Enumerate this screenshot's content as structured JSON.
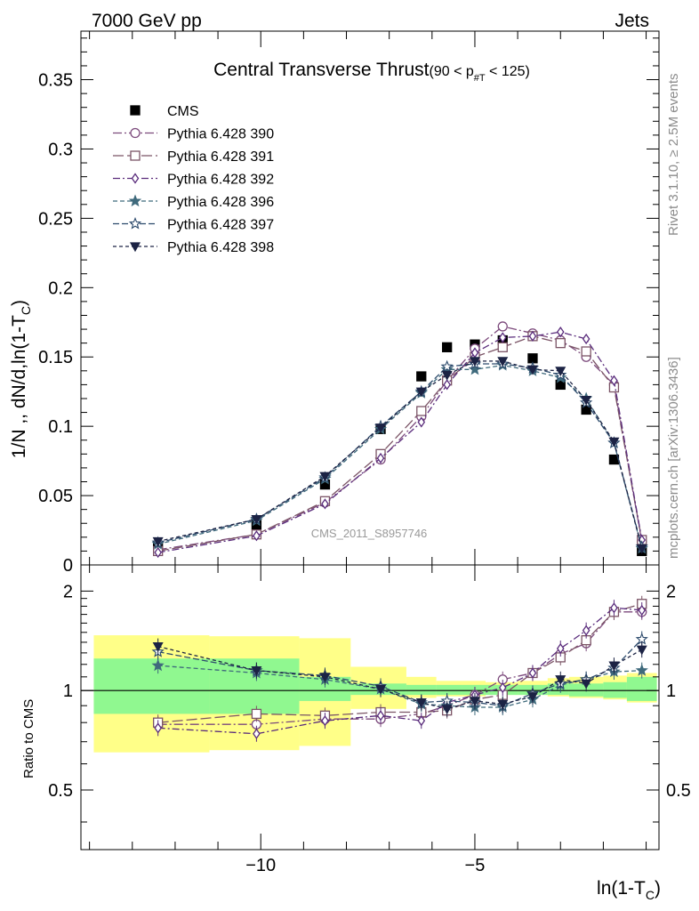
{
  "header": {
    "left": "7000 GeV pp",
    "right": "Jets"
  },
  "side_text": {
    "rivet": "Rivet 3.1.10, ≥ 2.5M events",
    "mcplots": "mcplots.cern.ch [arXiv:1306.3436]"
  },
  "watermark": "CMS_2011_S8957746",
  "chart_data": {
    "type": "line",
    "title": "Central Transverse Thrust",
    "title_suffix": "(90 < p",
    "title_suffix_sub": "#T",
    "title_suffix_end": " < 125)",
    "xlabel": "ln(1-T",
    "xlabel_sub": "C",
    "xlabel_end": ")",
    "ylabel": "1/N ,, dN/d,ln(1-T",
    "ylabel_sub": "C",
    "ylabel_end": ")",
    "ratio_ylabel": "Ratio to CMS",
    "xlim": [
      -14.2,
      -0.7
    ],
    "ylim": [
      0,
      0.385
    ],
    "ratio_ylim": [
      0.33,
      2.4
    ],
    "ratio_log": true,
    "x_ticks": [
      -10,
      -5
    ],
    "x_tick_labels": [
      "−10",
      "−5"
    ],
    "y_ticks": [
      0,
      0.05,
      0.1,
      0.15,
      0.2,
      0.25,
      0.3,
      0.35
    ],
    "y_tick_labels": [
      "0",
      "0.05",
      "0.1",
      "0.15",
      "0.2",
      "0.25",
      "0.3",
      "0.35"
    ],
    "ratio_ticks": [
      0.5,
      1,
      2
    ],
    "ratio_tick_labels": [
      "0.5",
      "1",
      "2"
    ],
    "x": [
      -12.4,
      -10.1,
      -8.5,
      -7.2,
      -6.25,
      -5.65,
      -5.0,
      -4.35,
      -3.65,
      -3.0,
      -2.4,
      -1.75,
      -1.1
    ],
    "band_edges": [
      -13.9,
      -11.2,
      -9.1,
      -7.9,
      -6.6,
      -5.9,
      -5.3,
      -4.75,
      -4.0,
      -3.3,
      -2.8,
      -2.0,
      -1.45,
      -0.75
    ],
    "band_stat": [
      [
        0.85,
        1.25
      ],
      [
        0.85,
        1.25
      ],
      [
        0.93,
        1.1
      ],
      [
        0.97,
        1.05
      ],
      [
        0.97,
        1.04
      ],
      [
        0.97,
        1.04
      ],
      [
        0.97,
        1.04
      ],
      [
        0.97,
        1.04
      ],
      [
        0.97,
        1.04
      ],
      [
        0.97,
        1.05
      ],
      [
        0.96,
        1.05
      ],
      [
        0.95,
        1.06
      ],
      [
        0.93,
        1.1
      ]
    ],
    "band_total": [
      [
        0.65,
        1.47
      ],
      [
        0.66,
        1.46
      ],
      [
        0.68,
        1.44
      ],
      [
        0.88,
        1.18
      ],
      [
        0.95,
        1.1
      ],
      [
        0.96,
        1.07
      ],
      [
        0.96,
        1.07
      ],
      [
        0.97,
        1.06
      ],
      [
        0.97,
        1.07
      ],
      [
        0.96,
        1.09
      ],
      [
        0.95,
        1.1
      ],
      [
        0.94,
        1.11
      ],
      [
        0.92,
        1.13
      ]
    ],
    "legend_position": "top-left",
    "series": [
      {
        "name": "CMS",
        "color": "#000000",
        "marker": "square-filled",
        "dash": "none",
        "values": [
          0.013,
          0.029,
          0.058,
          0.098,
          0.136,
          0.157,
          0.159,
          0.162,
          0.149,
          0.13,
          0.112,
          0.076,
          0.01
        ]
      },
      {
        "name": "Pythia 6.428 390",
        "color": "#7c4a7c",
        "marker": "circle-open",
        "dash": "10,3,2,3",
        "values": [
          0.011,
          0.022,
          0.045,
          0.076,
          0.107,
          0.133,
          0.156,
          0.172,
          0.167,
          0.162,
          0.15,
          0.13,
          0.017
        ],
        "ratio": [
          0.79,
          0.79,
          0.82,
          0.82,
          0.85,
          0.9,
          0.97,
          1.08,
          1.13,
          1.29,
          1.39,
          1.73,
          1.73
        ]
      },
      {
        "name": "Pythia 6.428 391",
        "color": "#7b5466",
        "marker": "square-open",
        "dash": "12,4",
        "values": [
          0.01,
          0.022,
          0.046,
          0.08,
          0.111,
          0.133,
          0.15,
          0.157,
          0.165,
          0.16,
          0.154,
          0.128,
          0.018
        ],
        "ratio": [
          0.8,
          0.85,
          0.84,
          0.86,
          0.86,
          0.87,
          0.94,
          0.97,
          1.13,
          1.26,
          1.42,
          1.73,
          1.83
        ]
      },
      {
        "name": "Pythia 6.428 392",
        "color": "#5a2c7c",
        "marker": "diamond-open",
        "dash": "8,3,2,3",
        "values": [
          0.009,
          0.021,
          0.044,
          0.077,
          0.103,
          0.13,
          0.153,
          0.164,
          0.165,
          0.168,
          0.163,
          0.133,
          0.018
        ],
        "ratio": [
          0.77,
          0.74,
          0.81,
          0.84,
          0.81,
          0.92,
          0.97,
          1.02,
          1.13,
          1.34,
          1.52,
          1.78,
          1.75
        ]
      },
      {
        "name": "Pythia 6.428 396",
        "color": "#3f6a7c",
        "marker": "star-filled",
        "dash": "5,3",
        "values": [
          0.015,
          0.032,
          0.062,
          0.098,
          0.124,
          0.141,
          0.141,
          0.144,
          0.14,
          0.135,
          0.12,
          0.088,
          0.012
        ],
        "ratio": [
          1.19,
          1.13,
          1.08,
          1.01,
          0.91,
          0.9,
          0.89,
          0.89,
          0.94,
          1.04,
          1.08,
          1.14,
          1.15
        ]
      },
      {
        "name": "Pythia 6.428 397",
        "color": "#2c4a6c",
        "marker": "star-open",
        "dash": "7,3",
        "values": [
          0.016,
          0.033,
          0.063,
          0.1,
          0.125,
          0.143,
          0.145,
          0.145,
          0.142,
          0.137,
          0.117,
          0.088,
          0.013
        ],
        "ratio": [
          1.31,
          1.15,
          1.11,
          1.03,
          0.92,
          0.93,
          0.92,
          0.9,
          0.98,
          1.05,
          1.08,
          1.17,
          1.43
        ]
      },
      {
        "name": "Pythia 6.428 398",
        "color": "#1c2344",
        "marker": "triangle-down-filled",
        "dash": "4,3",
        "values": [
          0.017,
          0.033,
          0.064,
          0.099,
          0.125,
          0.137,
          0.147,
          0.147,
          0.141,
          0.14,
          0.119,
          0.089,
          0.012
        ],
        "ratio": [
          1.36,
          1.15,
          1.1,
          1.01,
          0.92,
          0.88,
          0.93,
          0.91,
          0.96,
          1.08,
          1.05,
          1.19,
          1.33
        ]
      }
    ]
  }
}
